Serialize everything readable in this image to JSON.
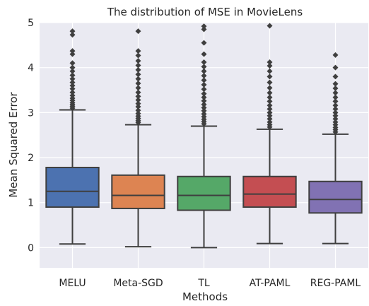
{
  "chart_data": {
    "type": "box",
    "title": "The distribution of MSE in MovieLens",
    "xlabel": "Methods",
    "ylabel": "Mean Squared Error",
    "ylim": [
      -0.45,
      5.0
    ],
    "yticks": [
      0,
      1,
      2,
      3,
      4,
      5
    ],
    "grid": true,
    "legend": "none",
    "categories": [
      "MELU",
      "Meta-SGD",
      "TL",
      "AT-PAML",
      "REG-PAML"
    ],
    "series": [
      {
        "category": "MELU",
        "color": "#4c72b0",
        "whisker_low": 0.08,
        "q1": 0.9,
        "median": 1.25,
        "q3": 1.78,
        "whisker_high": 3.06,
        "outliers": [
          3.1,
          3.14,
          3.18,
          3.22,
          3.27,
          3.32,
          3.38,
          3.45,
          3.53,
          3.6,
          3.67,
          3.75,
          3.83,
          3.92,
          4.0,
          4.1,
          4.3,
          4.37,
          4.73,
          4.81
        ]
      },
      {
        "category": "Meta-SGD",
        "color": "#dd8452",
        "whisker_low": 0.02,
        "q1": 0.87,
        "median": 1.16,
        "q3": 1.61,
        "whisker_high": 2.73,
        "outliers": [
          2.78,
          2.82,
          2.87,
          2.92,
          2.98,
          3.05,
          3.13,
          3.2,
          3.28,
          3.36,
          3.45,
          3.55,
          3.65,
          3.75,
          3.85,
          3.95,
          4.05,
          4.15,
          4.27,
          4.37,
          4.81
        ]
      },
      {
        "category": "TL",
        "color": "#55a868",
        "whisker_low": 0.0,
        "q1": 0.83,
        "median": 1.16,
        "q3": 1.58,
        "whisker_high": 2.7,
        "outliers": [
          2.75,
          2.8,
          2.85,
          2.91,
          2.97,
          3.04,
          3.11,
          3.18,
          3.26,
          3.34,
          3.42,
          3.52,
          3.62,
          3.72,
          3.82,
          3.92,
          4.02,
          4.12,
          4.3,
          4.55,
          4.85,
          4.92
        ]
      },
      {
        "category": "AT-PAML",
        "color": "#c44e52",
        "whisker_low": 0.09,
        "q1": 0.9,
        "median": 1.19,
        "q3": 1.58,
        "whisker_high": 2.63,
        "outliers": [
          2.68,
          2.73,
          2.79,
          2.86,
          2.93,
          3.0,
          3.08,
          3.16,
          3.25,
          3.34,
          3.44,
          3.55,
          3.67,
          3.8,
          3.92,
          4.04,
          4.12,
          4.93
        ]
      },
      {
        "category": "REG-PAML",
        "color": "#8172b3",
        "whisker_low": 0.09,
        "q1": 0.77,
        "median": 1.07,
        "q3": 1.47,
        "whisker_high": 2.52,
        "outliers": [
          2.57,
          2.62,
          2.67,
          2.73,
          2.79,
          2.86,
          2.93,
          3.0,
          3.08,
          3.16,
          3.25,
          3.34,
          3.44,
          3.54,
          3.64,
          3.8,
          4.0,
          4.28
        ]
      }
    ]
  }
}
